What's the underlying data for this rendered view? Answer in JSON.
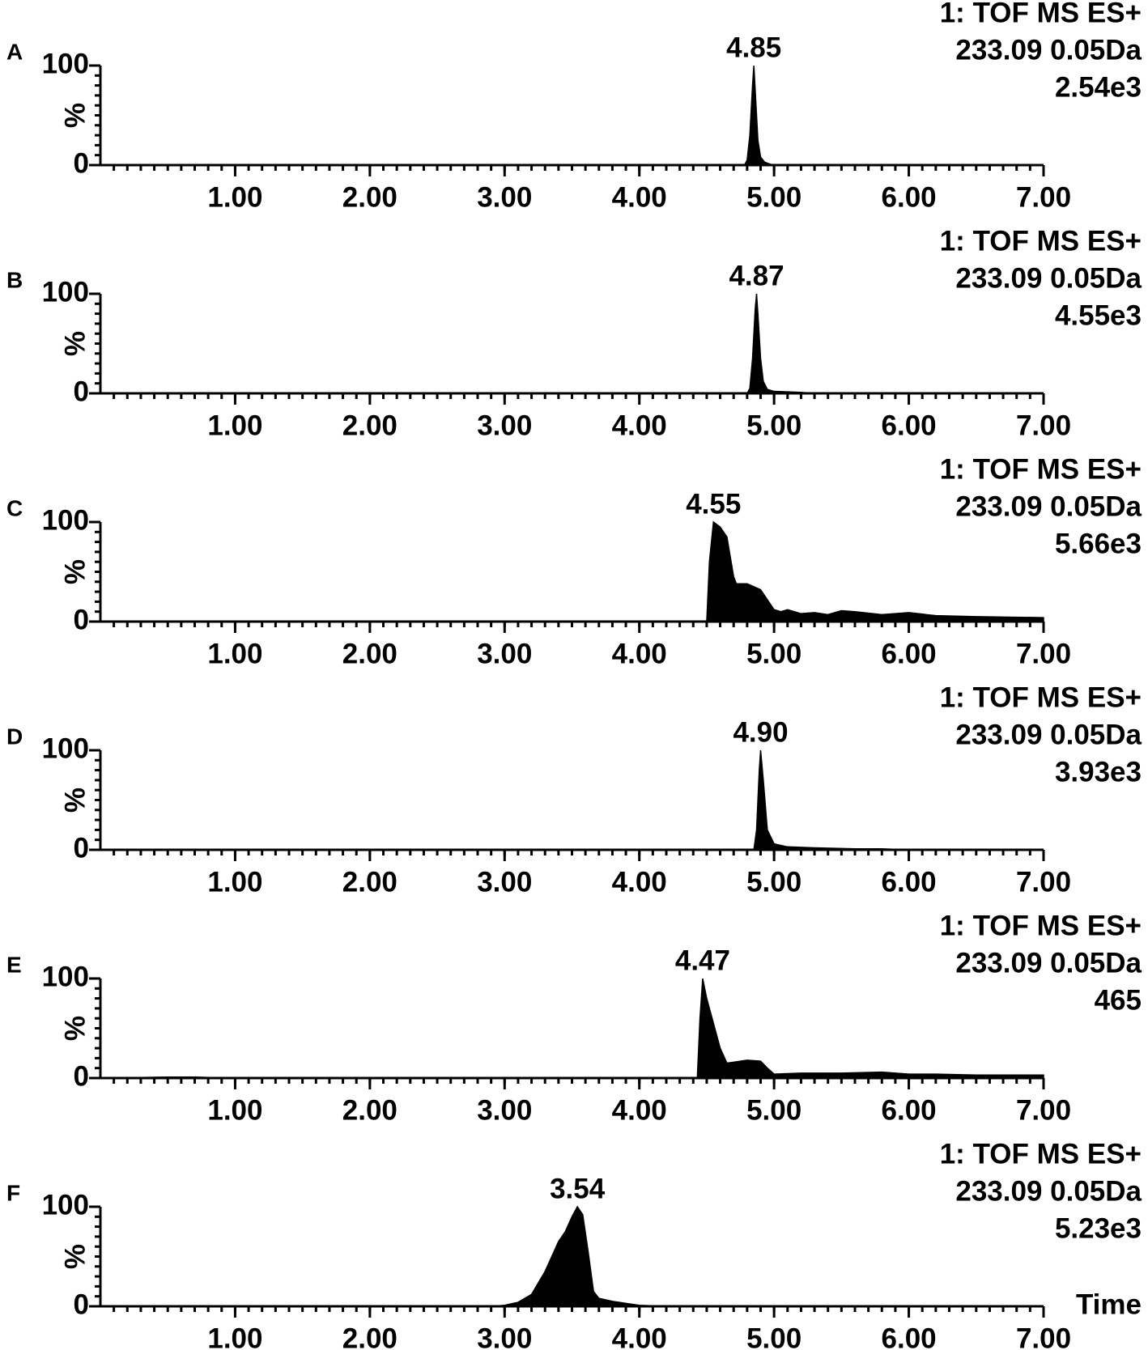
{
  "chart_data": [
    {
      "type": "area",
      "panel": "A",
      "header": [
        "1: TOF MS ES+",
        "233.09 0.05Da",
        "2.54e3"
      ],
      "ylabel": "%",
      "color": "#000000",
      "x": [
        0,
        4.78,
        4.8,
        4.82,
        4.84,
        4.85,
        4.86,
        4.88,
        4.9,
        4.93,
        4.97,
        5.0,
        7.0
      ],
      "values": [
        0,
        0,
        5,
        30,
        80,
        100,
        75,
        25,
        8,
        3,
        1,
        0,
        0
      ],
      "peak": {
        "x": 4.85,
        "label": "4.85"
      },
      "xlim": [
        0,
        7
      ],
      "xticks": [
        {
          "value": 1,
          "label": "1.00"
        },
        {
          "value": 2,
          "label": "2.00"
        },
        {
          "value": 3,
          "label": "3.00"
        },
        {
          "value": 4,
          "label": "4.00"
        },
        {
          "value": 5,
          "label": "5.00"
        },
        {
          "value": 6,
          "label": "6.00"
        },
        {
          "value": 7,
          "label": "7.00"
        }
      ],
      "ylim": [
        0,
        100
      ],
      "yticks": [
        0,
        100
      ]
    },
    {
      "type": "area",
      "panel": "B",
      "header": [
        "1: TOF MS ES+",
        "233.09 0.05Da",
        "4.55e3"
      ],
      "ylabel": "%",
      "color": "#000000",
      "x": [
        0,
        4.8,
        4.82,
        4.84,
        4.86,
        4.87,
        4.88,
        4.9,
        4.92,
        4.95,
        5.0,
        5.2,
        5.3,
        7.0
      ],
      "values": [
        0,
        0,
        5,
        35,
        85,
        100,
        80,
        35,
        12,
        4,
        2,
        1,
        0,
        0
      ],
      "peak": {
        "x": 4.87,
        "label": "4.87"
      },
      "xlim": [
        0,
        7
      ],
      "xticks": [
        {
          "value": 1,
          "label": "1.00"
        },
        {
          "value": 2,
          "label": "2.00"
        },
        {
          "value": 3,
          "label": "3.00"
        },
        {
          "value": 4,
          "label": "4.00"
        },
        {
          "value": 5,
          "label": "5.00"
        },
        {
          "value": 6,
          "label": "6.00"
        },
        {
          "value": 7,
          "label": "7.00"
        }
      ],
      "ylim": [
        0,
        100
      ],
      "yticks": [
        0,
        100
      ]
    },
    {
      "type": "area",
      "panel": "C",
      "header": [
        "1: TOF MS ES+",
        "233.09 0.05Da",
        "5.66e3"
      ],
      "ylabel": "%",
      "color": "#000000",
      "x": [
        0,
        4.5,
        4.52,
        4.55,
        4.6,
        4.65,
        4.7,
        4.72,
        4.8,
        4.9,
        4.95,
        5.0,
        5.05,
        5.1,
        5.2,
        5.3,
        5.4,
        5.5,
        5.6,
        5.8,
        6.0,
        6.2,
        6.5,
        7.0
      ],
      "values": [
        0,
        0,
        60,
        100,
        95,
        85,
        45,
        38,
        38,
        32,
        22,
        12,
        10,
        12,
        8,
        9,
        7,
        11,
        10,
        7,
        9,
        6,
        5,
        4
      ],
      "peak": {
        "x": 4.55,
        "label": "4.55"
      },
      "xlim": [
        0,
        7
      ],
      "xticks": [
        {
          "value": 1,
          "label": "1.00"
        },
        {
          "value": 2,
          "label": "2.00"
        },
        {
          "value": 3,
          "label": "3.00"
        },
        {
          "value": 4,
          "label": "4.00"
        },
        {
          "value": 5,
          "label": "5.00"
        },
        {
          "value": 6,
          "label": "6.00"
        },
        {
          "value": 7,
          "label": "7.00"
        }
      ],
      "ylim": [
        0,
        100
      ],
      "yticks": [
        0,
        100
      ]
    },
    {
      "type": "area",
      "panel": "D",
      "header": [
        "1: TOF MS ES+",
        "233.09 0.05Da",
        "3.93e3"
      ],
      "ylabel": "%",
      "color": "#000000",
      "x": [
        0,
        4.85,
        4.87,
        4.89,
        4.9,
        4.92,
        4.95,
        5.0,
        5.1,
        5.3,
        5.6,
        5.8,
        6.0,
        7.0
      ],
      "values": [
        0,
        0,
        20,
        80,
        100,
        70,
        20,
        6,
        3,
        2,
        1,
        1,
        0,
        0
      ],
      "peak": {
        "x": 4.9,
        "label": "4.90"
      },
      "xlim": [
        0,
        7
      ],
      "xticks": [
        {
          "value": 1,
          "label": "1.00"
        },
        {
          "value": 2,
          "label": "2.00"
        },
        {
          "value": 3,
          "label": "3.00"
        },
        {
          "value": 4,
          "label": "4.00"
        },
        {
          "value": 5,
          "label": "5.00"
        },
        {
          "value": 6,
          "label": "6.00"
        },
        {
          "value": 7,
          "label": "7.00"
        }
      ],
      "ylim": [
        0,
        100
      ],
      "yticks": [
        0,
        100
      ]
    },
    {
      "type": "area",
      "panel": "E",
      "header": [
        "1: TOF MS ES+",
        "233.09 0.05Da",
        "465"
      ],
      "ylabel": "%",
      "color": "#000000",
      "x": [
        0,
        0.5,
        0.7,
        1.0,
        4.43,
        4.45,
        4.47,
        4.5,
        4.55,
        4.6,
        4.65,
        4.7,
        4.8,
        4.9,
        4.95,
        5.0,
        5.2,
        5.5,
        5.8,
        6.0,
        6.2,
        6.5,
        7.0
      ],
      "values": [
        0,
        1,
        1,
        0,
        0,
        60,
        100,
        80,
        55,
        30,
        15,
        16,
        18,
        17,
        10,
        4,
        5,
        5,
        6,
        4,
        4,
        3,
        3
      ],
      "peak": {
        "x": 4.47,
        "label": "4.47"
      },
      "xlim": [
        0,
        7
      ],
      "xticks": [
        {
          "value": 1,
          "label": "1.00"
        },
        {
          "value": 2,
          "label": "2.00"
        },
        {
          "value": 3,
          "label": "3.00"
        },
        {
          "value": 4,
          "label": "4.00"
        },
        {
          "value": 5,
          "label": "5.00"
        },
        {
          "value": 6,
          "label": "6.00"
        },
        {
          "value": 7,
          "label": "7.00"
        }
      ],
      "ylim": [
        0,
        100
      ],
      "yticks": [
        0,
        100
      ]
    },
    {
      "type": "area",
      "panel": "F",
      "header": [
        "1: TOF MS ES+",
        "233.09 0.05Da",
        "5.23e3"
      ],
      "ylabel": "%",
      "xlabel": "Time",
      "color": "#000000",
      "x": [
        0,
        2.9,
        3.0,
        3.1,
        3.2,
        3.3,
        3.35,
        3.4,
        3.45,
        3.5,
        3.54,
        3.58,
        3.62,
        3.66,
        3.7,
        3.8,
        3.9,
        4.0,
        4.2,
        7.0
      ],
      "values": [
        0,
        0,
        1,
        4,
        12,
        35,
        50,
        65,
        75,
        90,
        100,
        92,
        55,
        15,
        8,
        5,
        3,
        1,
        0,
        0
      ],
      "peak": {
        "x": 3.54,
        "label": "3.54"
      },
      "xlim": [
        0,
        7
      ],
      "xticks": [
        {
          "value": 1,
          "label": "1.00"
        },
        {
          "value": 2,
          "label": "2.00"
        },
        {
          "value": 3,
          "label": "3.00"
        },
        {
          "value": 4,
          "label": "4.00"
        },
        {
          "value": 5,
          "label": "5.00"
        },
        {
          "value": 6,
          "label": "6.00"
        },
        {
          "value": 7,
          "label": "7.00"
        }
      ],
      "ylim": [
        0,
        100
      ],
      "yticks": [
        0,
        100
      ]
    }
  ]
}
